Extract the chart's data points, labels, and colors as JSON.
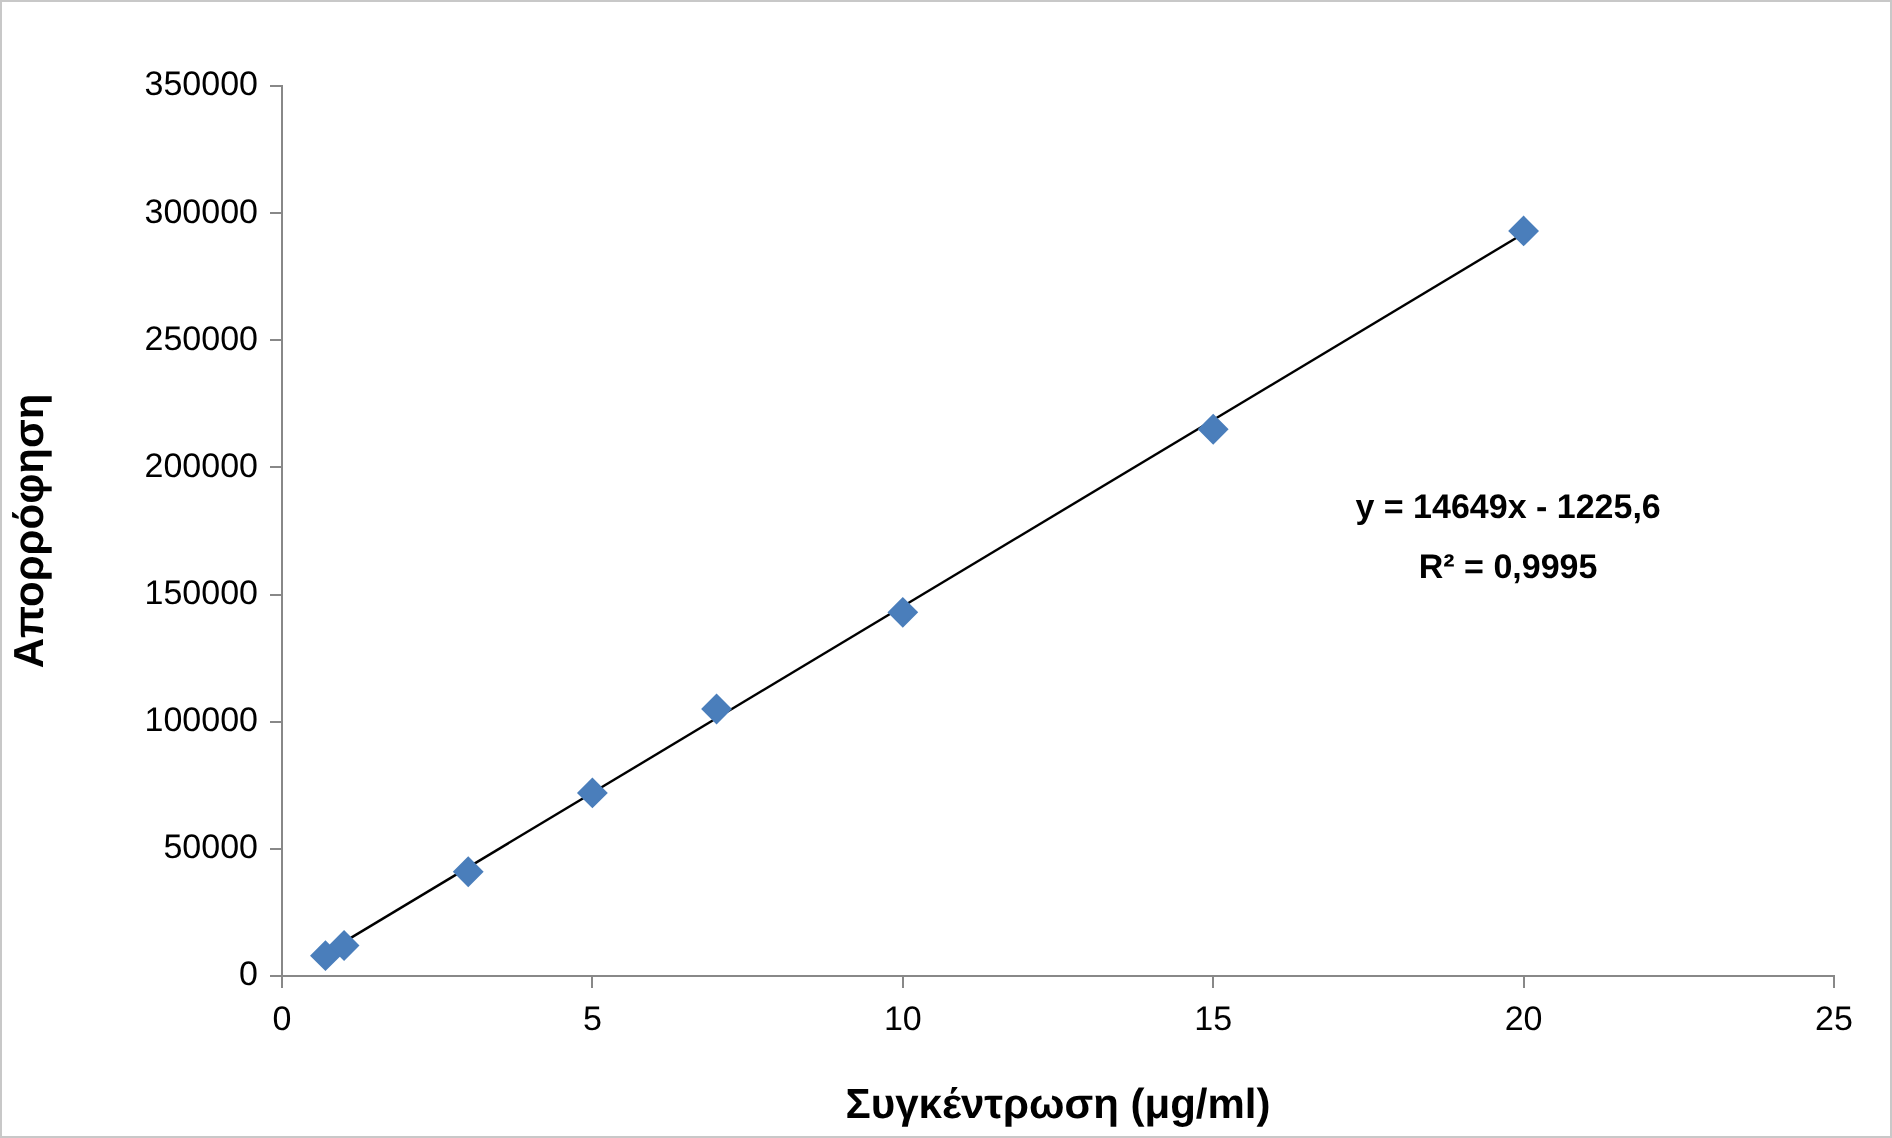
{
  "chart_data": {
    "type": "scatter",
    "xlabel": "Συγκέντρωση (μg/ml)",
    "ylabel": "Απορρόφηση",
    "annotations": [
      "y = 14649x - 1225,6",
      "R² = 0,9995"
    ],
    "xlim": [
      0,
      25
    ],
    "xticks": [
      0,
      5,
      10,
      15,
      20,
      25
    ],
    "ylim": [
      0,
      350000
    ],
    "yticks": [
      0,
      50000,
      100000,
      150000,
      200000,
      250000,
      300000,
      350000
    ],
    "series": [
      {
        "marker": "diamond",
        "color": "#4a7ebb",
        "x": [
          0.7,
          1,
          3,
          5,
          7,
          10,
          15,
          20
        ],
        "values": [
          8000,
          12000,
          41000,
          72000,
          105000,
          143000,
          215000,
          293000
        ]
      },
      {
        "type": "line",
        "marker": "none",
        "color": "#000000",
        "x": [
          0.7,
          20
        ],
        "values": [
          9000,
          292000
        ]
      }
    ]
  }
}
